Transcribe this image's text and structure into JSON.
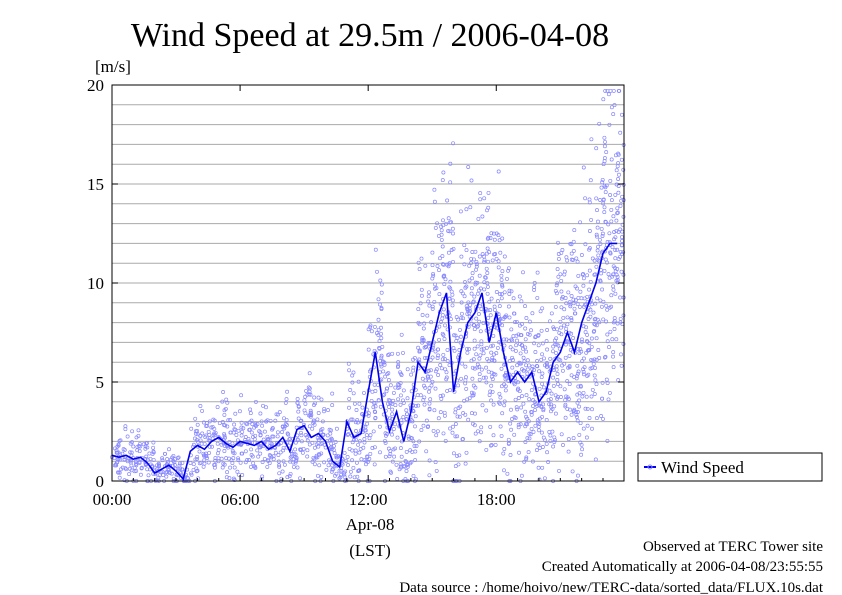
{
  "chart_data": {
    "type": "scatter",
    "title": "Wind Speed at 29.5m / 2006-04-08",
    "ylabel": "[m/s]",
    "xlabel": "(LST)",
    "x_date_label": "Apr-08",
    "xlim": [
      "00:00",
      "23:59"
    ],
    "ylim": [
      0,
      20
    ],
    "y_ticks": [
      "0",
      "5",
      "10",
      "15",
      "20"
    ],
    "x_ticks": [
      "00:00",
      "06:00",
      "12:00",
      "18:00"
    ],
    "grid": true,
    "legend_position": "right",
    "series": [
      {
        "name": "Wind Speed",
        "color": "#0000ee",
        "scatter_color": "#8888ff",
        "x": [
          "00:00",
          "00:20",
          "00:40",
          "01:00",
          "01:20",
          "01:40",
          "02:00",
          "02:20",
          "02:40",
          "03:00",
          "03:20",
          "03:40",
          "04:00",
          "04:20",
          "04:40",
          "05:00",
          "05:20",
          "05:40",
          "06:00",
          "06:20",
          "06:40",
          "07:00",
          "07:20",
          "07:40",
          "08:00",
          "08:20",
          "08:40",
          "09:00",
          "09:20",
          "09:40",
          "10:00",
          "10:20",
          "10:40",
          "11:00",
          "11:20",
          "11:40",
          "12:00",
          "12:20",
          "12:40",
          "13:00",
          "13:20",
          "13:40",
          "14:00",
          "14:20",
          "14:40",
          "15:00",
          "15:20",
          "15:40",
          "16:00",
          "16:20",
          "16:40",
          "17:00",
          "17:20",
          "17:40",
          "18:00",
          "18:20",
          "18:40",
          "19:00",
          "19:20",
          "19:40",
          "20:00",
          "20:20",
          "20:40",
          "21:00",
          "21:20",
          "21:40",
          "22:00",
          "22:20",
          "22:40",
          "23:00",
          "23:20",
          "23:40"
        ],
        "values": [
          1.3,
          1.2,
          1.3,
          1.1,
          1.2,
          0.9,
          0.4,
          0.6,
          0.8,
          0.5,
          0.1,
          1.5,
          1.8,
          1.6,
          2.0,
          2.2,
          1.9,
          1.7,
          2.0,
          1.9,
          1.8,
          2.0,
          1.6,
          1.8,
          2.2,
          1.5,
          2.6,
          2.8,
          2.2,
          2.4,
          2.0,
          1.0,
          0.7,
          3.0,
          2.2,
          2.4,
          4.5,
          6.5,
          4.0,
          2.5,
          3.5,
          2.0,
          3.5,
          6.0,
          5.5,
          7.0,
          8.5,
          9.5,
          4.5,
          6.5,
          8.0,
          8.5,
          9.5,
          7.0,
          8.5,
          6.5,
          5.0,
          5.5,
          5.0,
          5.5,
          4.0,
          4.5,
          6.0,
          6.5,
          7.5,
          6.5,
          8.0,
          9.0,
          10.0,
          11.5,
          12.0,
          12.0
        ],
        "scatter_spread": [
          0.6,
          0.6,
          0.6,
          0.6,
          0.6,
          0.5,
          0.3,
          0.4,
          0.4,
          0.3,
          0.2,
          0.7,
          0.8,
          0.8,
          0.9,
          1.0,
          0.9,
          0.8,
          0.9,
          0.9,
          0.9,
          1.0,
          0.8,
          0.9,
          1.0,
          0.8,
          1.2,
          1.3,
          1.1,
          1.2,
          1.0,
          0.6,
          0.5,
          1.4,
          1.2,
          1.2,
          2.0,
          2.5,
          2.0,
          1.5,
          2.0,
          1.5,
          2.0,
          2.5,
          2.5,
          3.0,
          3.2,
          3.5,
          2.5,
          3.0,
          3.2,
          3.2,
          3.5,
          3.0,
          3.2,
          3.0,
          2.5,
          2.5,
          2.5,
          2.5,
          2.2,
          2.4,
          2.8,
          2.8,
          3.0,
          3.0,
          3.2,
          3.5,
          3.5,
          3.8,
          3.8,
          3.8
        ]
      }
    ]
  },
  "footer": {
    "line1": "Observed at TERC Tower site",
    "line2": "Created Automatically at 2006-04-08/23:55:55",
    "line3": "Data source : /home/hoivo/new/TERC-data/sorted_data/FLUX.10s.dat"
  }
}
